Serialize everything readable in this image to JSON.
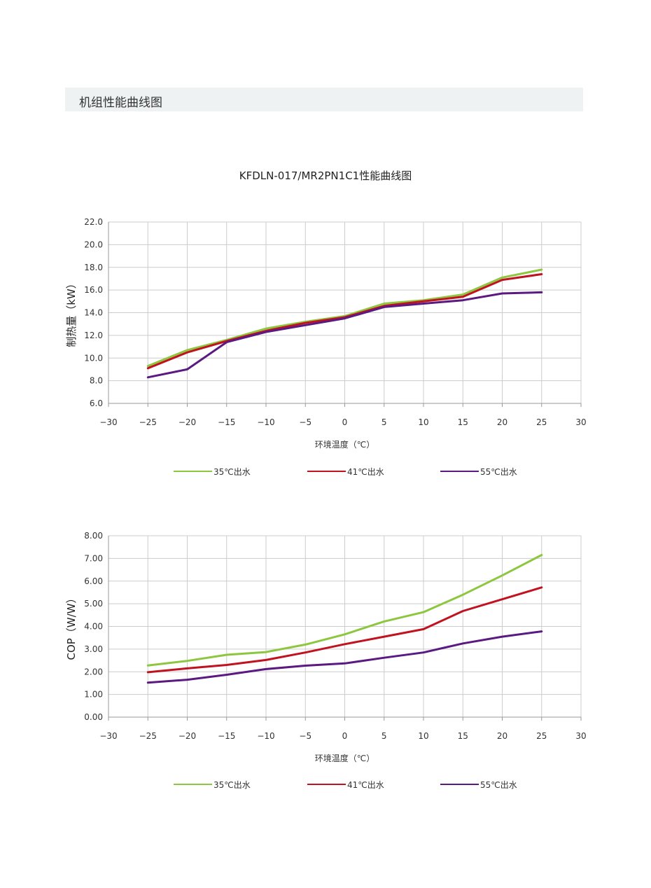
{
  "section": {
    "title": "机组性能曲线图"
  },
  "colors": {
    "s35": "#8dc63f",
    "s41": "#c1121f",
    "s55": "#5b1a82",
    "grid": "#cccccc",
    "axis": "#999999"
  },
  "chart_data": [
    {
      "type": "line",
      "title": "KFDLN-017/MR2PN1C1性能曲线图",
      "xlabel": "环境温度（℃）",
      "ylabel": "制热量（kW）",
      "xlim": [
        -30,
        30
      ],
      "ylim": [
        6.0,
        22.0
      ],
      "xticks": [
        "−30",
        "−25",
        "−20",
        "−15",
        "−10",
        "−5",
        "0",
        "5",
        "10",
        "15",
        "20",
        "25",
        "30"
      ],
      "yticks": [
        "6.0",
        "8.0",
        "10.0",
        "12.0",
        "14.0",
        "16.0",
        "18.0",
        "20.0",
        "22.0"
      ],
      "grid": true,
      "legend": "bottom",
      "x": [
        -25,
        -20,
        -15,
        -10,
        -5,
        0,
        5,
        10,
        15,
        20,
        25
      ],
      "series": [
        {
          "name": "35℃出水",
          "values": [
            9.3,
            10.7,
            11.6,
            12.6,
            13.2,
            13.7,
            14.8,
            15.1,
            15.6,
            17.1,
            17.8
          ]
        },
        {
          "name": "41℃出水",
          "values": [
            9.1,
            10.5,
            11.5,
            12.4,
            13.1,
            13.6,
            14.6,
            15.0,
            15.4,
            16.9,
            17.4
          ]
        },
        {
          "name": "55℃出水",
          "values": [
            8.3,
            9.0,
            11.4,
            12.3,
            12.9,
            13.5,
            14.5,
            14.8,
            15.1,
            15.7,
            15.8
          ]
        }
      ]
    },
    {
      "type": "line",
      "title": "",
      "xlabel": "环境温度（℃）",
      "ylabel": "COP（W/W）",
      "xlim": [
        -30,
        30
      ],
      "ylim": [
        0.0,
        8.0
      ],
      "xticks": [
        "−30",
        "−25",
        "−20",
        "−15",
        "−10",
        "−5",
        "0",
        "5",
        "10",
        "15",
        "20",
        "25",
        "30"
      ],
      "yticks": [
        "0.00",
        "1.00",
        "2.00",
        "3.00",
        "4.00",
        "5.00",
        "6.00",
        "7.00",
        "8.00"
      ],
      "grid": true,
      "legend": "bottom",
      "x": [
        -25,
        -20,
        -15,
        -10,
        -5,
        0,
        5,
        10,
        15,
        20,
        25
      ],
      "series": [
        {
          "name": "35℃出水",
          "values": [
            2.28,
            2.48,
            2.75,
            2.87,
            3.2,
            3.65,
            4.22,
            4.63,
            5.4,
            6.25,
            7.15
          ]
        },
        {
          "name": "41℃出水",
          "values": [
            1.98,
            2.15,
            2.3,
            2.52,
            2.85,
            3.22,
            3.55,
            3.88,
            4.68,
            5.2,
            5.72
          ]
        },
        {
          "name": "55℃出水",
          "values": [
            1.52,
            1.65,
            1.87,
            2.12,
            2.27,
            2.37,
            2.62,
            2.85,
            3.25,
            3.55,
            3.78
          ]
        }
      ]
    }
  ]
}
